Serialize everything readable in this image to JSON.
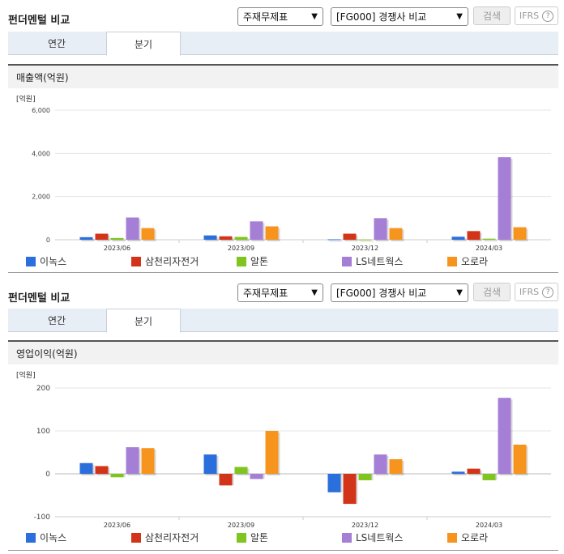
{
  "header": {
    "title": "펀더멘털 비교",
    "select_statement": "주재무제표",
    "select_compare": "[FG000] 경쟁사 비교",
    "search_label": "검색",
    "ifrs_label": "IFRS",
    "help_label": "?"
  },
  "tabs": [
    {
      "label": "연간",
      "active": false
    },
    {
      "label": "분기",
      "active": true
    }
  ],
  "legend_colors": [
    "#2a6fdb",
    "#d2341a",
    "#7fc41f",
    "#a57ed6",
    "#f7941d"
  ],
  "chart_data": [
    {
      "type": "bar",
      "title": "매출액(억원)",
      "unit_label": "[억원]",
      "categories": [
        "2023/06",
        "2023/09",
        "2023/12",
        "2024/03"
      ],
      "ylim": [
        0,
        6000
      ],
      "yticks": [
        0,
        2000,
        4000,
        6000
      ],
      "ytick_labels": [
        "0",
        "2,000",
        "4,000",
        "6,000"
      ],
      "series": [
        {
          "name": "이녹스",
          "values": [
            120,
            200,
            20,
            140
          ]
        },
        {
          "name": "삼천리자전거",
          "values": [
            280,
            160,
            280,
            400
          ]
        },
        {
          "name": "알톤",
          "values": [
            80,
            130,
            10,
            50
          ]
        },
        {
          "name": "LS네트웍스",
          "values": [
            1030,
            850,
            1000,
            3820
          ]
        },
        {
          "name": "오로라",
          "values": [
            540,
            620,
            540,
            580
          ]
        }
      ]
    },
    {
      "type": "bar",
      "title": "영업이익(억원)",
      "unit_label": "[억원]",
      "categories": [
        "2023/06",
        "2023/09",
        "2023/12",
        "2024/03"
      ],
      "ylim": [
        -100,
        200
      ],
      "yticks": [
        -100,
        0,
        100,
        200
      ],
      "ytick_labels": [
        "-100",
        "0",
        "100",
        "200"
      ],
      "series": [
        {
          "name": "이녹스",
          "values": [
            25,
            45,
            -43,
            5
          ]
        },
        {
          "name": "삼천리자전거",
          "values": [
            18,
            -27,
            -70,
            12
          ]
        },
        {
          "name": "알톤",
          "values": [
            -8,
            16,
            -15,
            -15
          ]
        },
        {
          "name": "LS네트웍스",
          "values": [
            62,
            -12,
            45,
            177
          ]
        },
        {
          "name": "오로라",
          "values": [
            60,
            100,
            34,
            68
          ]
        }
      ]
    }
  ]
}
